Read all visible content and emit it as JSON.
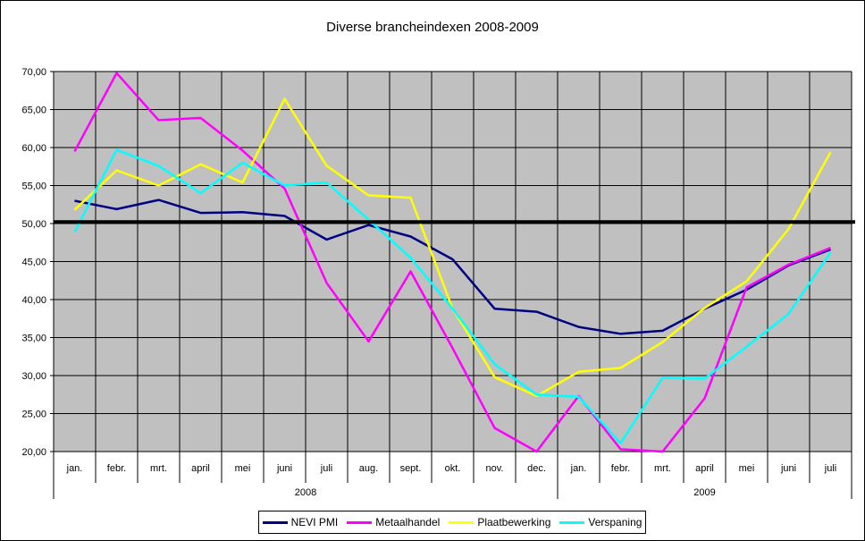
{
  "chart_data": {
    "type": "line",
    "title": "Diverse brancheindexen 2008-2009",
    "xlabel": "",
    "ylabel": "",
    "ylim": [
      20,
      70
    ],
    "y_ticks": [
      "20,00",
      "25,00",
      "30,00",
      "35,00",
      "40,00",
      "45,00",
      "50,00",
      "55,00",
      "60,00",
      "65,00",
      "70,00"
    ],
    "categories": [
      "jan.",
      "febr.",
      "mrt.",
      "april",
      "mei",
      "juni",
      "juli",
      "aug.",
      "sept.",
      "okt.",
      "nov.",
      "dec.",
      "jan.",
      "febr.",
      "mrt.",
      "april",
      "mei",
      "juni",
      "juli"
    ],
    "groups": [
      {
        "label": "2008",
        "count": 12
      },
      {
        "label": "2009",
        "count": 7
      }
    ],
    "reference_line": 50.2,
    "plot_background": "#c0c0c0",
    "grid": true,
    "legend_position": "bottom",
    "series": [
      {
        "name": "NEVI PMI",
        "color": "#000080",
        "values": [
          53.0,
          51.9,
          53.1,
          51.4,
          51.5,
          51.0,
          47.9,
          49.8,
          48.3,
          45.3,
          38.8,
          38.4,
          36.4,
          35.5,
          35.9,
          38.8,
          41.3,
          44.5,
          46.6
        ]
      },
      {
        "name": "Metaalhandel",
        "color": "#ff00ff",
        "values": [
          59.5,
          69.8,
          63.6,
          63.9,
          59.6,
          54.6,
          42.2,
          34.5,
          43.7,
          33.6,
          23.1,
          19.0,
          27.3,
          20.3,
          18.2,
          27.0,
          41.6,
          44.6,
          46.8
        ]
      },
      {
        "name": "Plaatbewerking",
        "color": "#ffff00",
        "values": [
          51.8,
          57.0,
          55.0,
          57.8,
          55.4,
          66.4,
          57.6,
          53.7,
          53.4,
          38.8,
          29.8,
          27.3,
          30.5,
          31.0,
          34.4,
          38.9,
          42.4,
          49.3,
          59.4
        ]
      },
      {
        "name": "Verspaning",
        "color": "#00ffff",
        "values": [
          48.9,
          59.7,
          57.6,
          54.0,
          58.0,
          55.0,
          55.4,
          50.5,
          45.5,
          38.8,
          31.5,
          27.5,
          27.2,
          21.1,
          29.7,
          29.6,
          33.8,
          38.1,
          46.2
        ]
      }
    ]
  }
}
